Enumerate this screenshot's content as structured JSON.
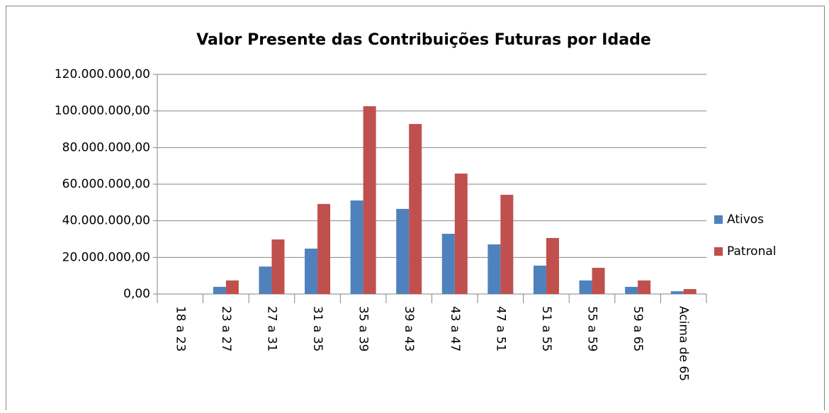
{
  "chart_data": {
    "type": "bar",
    "title": "Valor Presente das Contribuições Futuras por Idade",
    "categories": [
      "18 a 23",
      "23 a 27",
      "27 a 31",
      "31 a 35",
      "35 a 39",
      "39 a 43",
      "43 a 47",
      "47 a 51",
      "51 a 55",
      "55 a 59",
      "59 a 65",
      "Acima de 65"
    ],
    "series": [
      {
        "name": "Ativos",
        "color": "#4f81bd",
        "values": [
          0,
          3900000,
          15000000,
          24800000,
          51100000,
          46500000,
          32900000,
          27100000,
          15500000,
          7400000,
          3900000,
          1500000
        ]
      },
      {
        "name": "Patronal",
        "color": "#c0504d",
        "values": [
          0,
          7400000,
          29800000,
          49200000,
          102600000,
          92900000,
          65800000,
          54200000,
          30600000,
          14300000,
          7400000,
          2700000
        ]
      }
    ],
    "ylim": [
      0,
      120000000
    ],
    "yticks": [
      {
        "value": 0,
        "label": "0,00"
      },
      {
        "value": 20000000,
        "label": "20.000.000,00"
      },
      {
        "value": 40000000,
        "label": "40.000.000,00"
      },
      {
        "value": 60000000,
        "label": "60.000.000,00"
      },
      {
        "value": 80000000,
        "label": "80.000.000,00"
      },
      {
        "value": 100000000,
        "label": "100.000.000,00"
      },
      {
        "value": 120000000,
        "label": "120.000.000,00"
      }
    ],
    "grid": true,
    "legend": "right"
  }
}
